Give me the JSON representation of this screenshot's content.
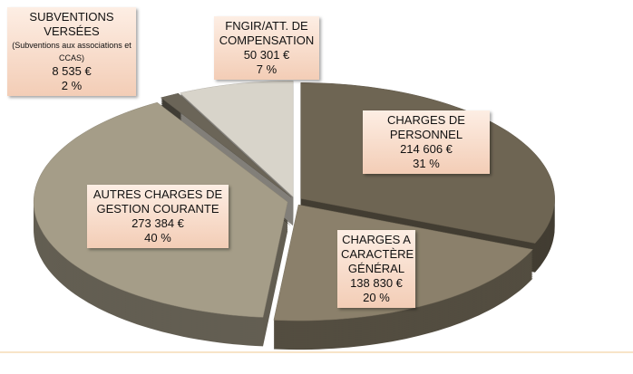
{
  "chart_data": {
    "type": "pie",
    "categories": [
      "CHARGES DE PERSONNEL",
      "CHARGES A CARACTÈRE GÉNÉRAL",
      "AUTRES CHARGES DE GESTION COURANTE",
      "SUBVENTIONS VERSÉES",
      "FNGIR/ATT. DE COMPENSATION"
    ],
    "values": [
      214606,
      138830,
      273384,
      8535,
      50301
    ],
    "value_labels": [
      "214 606 €",
      "138 830 €",
      "273 384 €",
      "8 535 €",
      "50 301 €"
    ],
    "percent_labels": [
      "31 %",
      "20 %",
      "40 %",
      "2 %",
      "7 %"
    ],
    "annotation": "(Subventions aux associations et CCAS)",
    "colors": [
      "#6e6553",
      "#8b806b",
      "#a59d88",
      "#6b6558",
      "#d8d4ca"
    ]
  }
}
